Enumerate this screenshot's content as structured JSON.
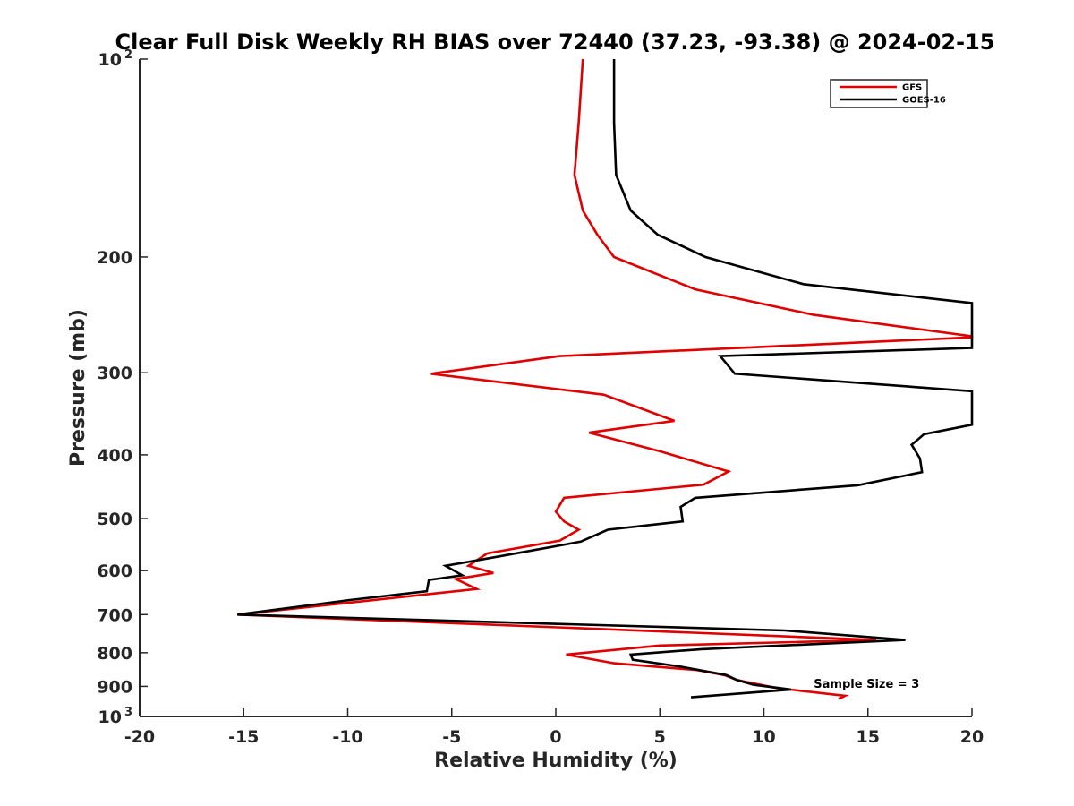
{
  "chart_data": {
    "type": "line",
    "title": "Clear Full Disk Weekly RH BIAS over 72440 (37.23, -93.38) @ 2024-02-15",
    "xlabel": "Relative Humidity (%)",
    "ylabel": "Pressure (mb)",
    "xlim": [
      -20,
      20
    ],
    "ylim": [
      100,
      1000
    ],
    "y_scale": "log",
    "y_reversed": true,
    "grid": false,
    "legend_position": "top-right",
    "x_ticks": [
      -20,
      -15,
      -10,
      -5,
      0,
      5,
      10,
      15,
      20
    ],
    "x_tick_labels": [
      "-20",
      "-15",
      "-10",
      "-5",
      "0",
      "5",
      "10",
      "15",
      "20"
    ],
    "y_ticks": [
      {
        "value": 100,
        "base": "10",
        "exp": "2"
      },
      {
        "value": 200,
        "base": "200",
        "exp": ""
      },
      {
        "value": 300,
        "base": "300",
        "exp": ""
      },
      {
        "value": 400,
        "base": "400",
        "exp": ""
      },
      {
        "value": 500,
        "base": "500",
        "exp": ""
      },
      {
        "value": 600,
        "base": "600",
        "exp": ""
      },
      {
        "value": 700,
        "base": "700",
        "exp": ""
      },
      {
        "value": 800,
        "base": "800",
        "exp": ""
      },
      {
        "value": 900,
        "base": "900",
        "exp": ""
      },
      {
        "value": 1000,
        "base": "10",
        "exp": "3"
      }
    ],
    "annotation": "Sample Size = 3",
    "annotation_position": {
      "x": 12.4,
      "p": 905
    },
    "series": [
      {
        "name": "GFS",
        "color": "#e00000",
        "points": [
          [
            1.3,
            100
          ],
          [
            1.1,
            125
          ],
          [
            0.9,
            150
          ],
          [
            1.3,
            170
          ],
          [
            2.0,
            185
          ],
          [
            2.8,
            200
          ],
          [
            6.7,
            224
          ],
          [
            12.4,
            245
          ],
          [
            20.0,
            264
          ],
          [
            20.0,
            265
          ],
          [
            0.2,
            283
          ],
          [
            -6.0,
            301
          ],
          [
            2.3,
            324
          ],
          [
            5.7,
            355
          ],
          [
            1.6,
            370
          ],
          [
            5.0,
            395
          ],
          [
            8.3,
            424
          ],
          [
            7.1,
            444
          ],
          [
            0.4,
            465
          ],
          [
            0.0,
            488
          ],
          [
            0.4,
            505
          ],
          [
            1.1,
            520
          ],
          [
            0.2,
            540
          ],
          [
            -3.3,
            565
          ],
          [
            -4.2,
            590
          ],
          [
            -3.0,
            605
          ],
          [
            -4.8,
            618
          ],
          [
            -3.8,
            640
          ],
          [
            -15.3,
            700
          ],
          [
            15.4,
            765
          ],
          [
            5.0,
            780
          ],
          [
            0.5,
            805
          ],
          [
            2.8,
            830
          ],
          [
            6.8,
            850
          ],
          [
            8.1,
            865
          ],
          [
            8.7,
            880
          ],
          [
            10.6,
            905
          ],
          [
            13.9,
            930
          ],
          [
            13.6,
            940
          ]
        ]
      },
      {
        "name": "GOES-16",
        "color": "#000000",
        "points": [
          [
            2.8,
            100
          ],
          [
            2.8,
            125
          ],
          [
            2.9,
            150
          ],
          [
            3.6,
            170
          ],
          [
            4.9,
            185
          ],
          [
            7.2,
            200
          ],
          [
            11.9,
            220
          ],
          [
            20.0,
            235
          ],
          [
            20.0,
            275
          ],
          [
            7.9,
            283
          ],
          [
            8.6,
            301
          ],
          [
            20.0,
            320
          ],
          [
            20.0,
            360
          ],
          [
            17.7,
            372
          ],
          [
            17.1,
            386
          ],
          [
            17.5,
            405
          ],
          [
            17.6,
            425
          ],
          [
            14.5,
            445
          ],
          [
            6.7,
            465
          ],
          [
            6.0,
            480
          ],
          [
            6.1,
            505
          ],
          [
            2.5,
            520
          ],
          [
            1.2,
            542
          ],
          [
            -2.6,
            570
          ],
          [
            -5.3,
            590
          ],
          [
            -4.5,
            610
          ],
          [
            -6.1,
            620
          ],
          [
            -6.2,
            645
          ],
          [
            -9.9,
            665
          ],
          [
            -15.3,
            700
          ],
          [
            11.0,
            740
          ],
          [
            16.8,
            765
          ],
          [
            7.0,
            790
          ],
          [
            3.6,
            805
          ],
          [
            3.7,
            820
          ],
          [
            6.0,
            840
          ],
          [
            8.2,
            865
          ],
          [
            8.7,
            880
          ],
          [
            9.5,
            895
          ],
          [
            11.3,
            910
          ],
          [
            6.5,
            935
          ]
        ]
      }
    ]
  }
}
